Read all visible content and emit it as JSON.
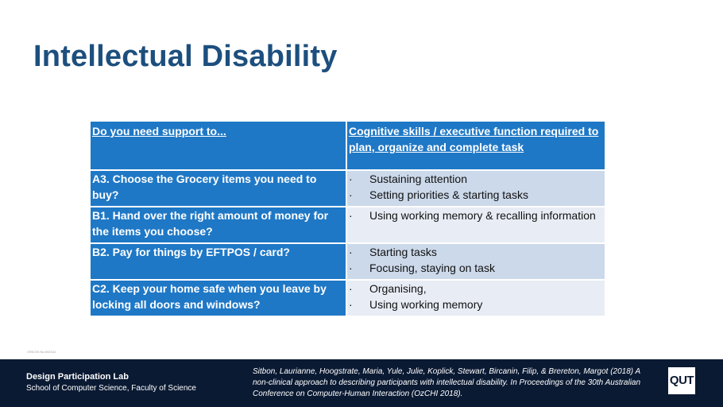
{
  "slide": {
    "title": "Intellectual Disability",
    "crisp_ref": "CRICOS No.00213J"
  },
  "table": {
    "headers": [
      "Do you need support to...",
      "Cognitive skills / executive function required to plan, organize and complete task"
    ],
    "bullet_char": "·",
    "rows": [
      {
        "question": "A3. Choose the Grocery items you need to buy?",
        "skills": [
          "Sustaining attention",
          "Setting priorities & starting tasks"
        ]
      },
      {
        "question": "B1. Hand over the right amount of money for the items you choose?",
        "skills": [
          "Using working memory & recalling information"
        ]
      },
      {
        "question": "B2. Pay for things by EFTPOS / card?",
        "skills": [
          "Starting tasks",
          "Focusing, staying on task"
        ]
      },
      {
        "question": "C2. Keep your home safe when you leave by locking all doors and windows?",
        "skills": [
          "Organising,",
          "Using working memory"
        ]
      }
    ]
  },
  "footer": {
    "lab_name": "Design Participation Lab",
    "school": "School of Computer Science, Faculty of Science",
    "citation": "Sitbon, Laurianne, Hoogstrate, Maria, Yule, Julie, Koplick, Stewart, Bircanin, Filip, & Brereton, Margot (2018) A non-clinical approach to describing participants with intellectual disability. In Proceedings of the 30th Australian Conference on Computer-Human Interaction (OzCHI 2018).",
    "logo_text": "QUT"
  }
}
